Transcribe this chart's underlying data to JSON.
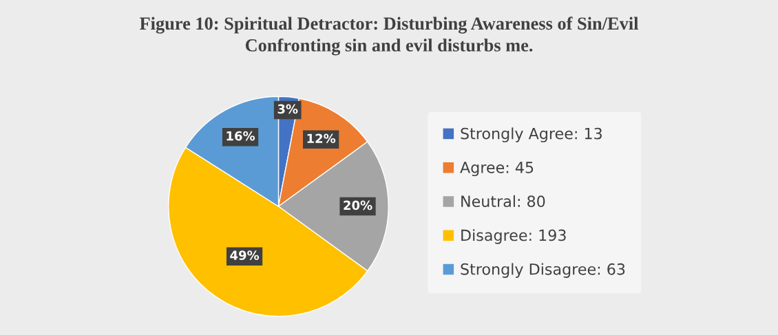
{
  "chart_data": {
    "type": "pie",
    "title": "Figure 10: Spiritual Detractor: Disturbing Awareness of Sin/Evil",
    "subtitle": "Confronting sin and evil disturbs me.",
    "categories": [
      "Strongly Agree: 13",
      "Agree: 45",
      "Neutral: 80",
      "Disagree: 193",
      "Strongly Disagree: 63"
    ],
    "values": [
      3,
      12,
      20,
      49,
      16
    ],
    "colors": [
      "#4472c4",
      "#ed7d31",
      "#a5a5a5",
      "#ffc000",
      "#5b9bd5"
    ],
    "value_labels": [
      "3%",
      "12%",
      "20%",
      "49%",
      "16%"
    ],
    "legend": "right"
  }
}
